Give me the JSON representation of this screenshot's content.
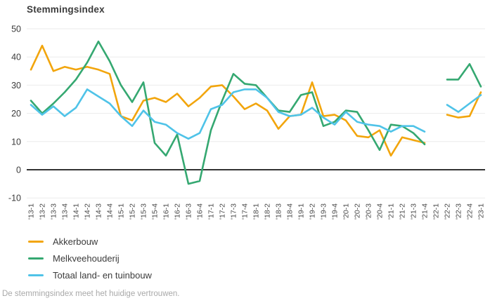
{
  "title": "Stemmingsindex",
  "footer": "De stemmingsindex meet het huidige vertrouwen.",
  "colors": {
    "grid": "#ebebeb",
    "zero_line": "#333333",
    "axis_text": "#3b3b3b",
    "tick_text": "#4a4a4a"
  },
  "chart_data": {
    "type": "line",
    "title": "Stemmingsindex",
    "xlabel": "",
    "ylabel": "",
    "ylim": [
      -10,
      50
    ],
    "yticks": [
      50,
      40,
      30,
      20,
      10,
      0,
      -10
    ],
    "grid": true,
    "legend_position": "bottom-left",
    "note": "values are null at '22-1 (gap in all series)",
    "categories": [
      "'13-1",
      "'13-2",
      "'13-3",
      "'13-4",
      "'14-1",
      "'14-2",
      "'14-3",
      "'14-4",
      "'15-1",
      "'15-2",
      "'15-3",
      "'15-4",
      "'16-1",
      "'16-2",
      "'16-3",
      "'16-4",
      "'17-1",
      "'17-2",
      "'17-3",
      "'17-4",
      "'18-1",
      "'18-2",
      "'18-3",
      "'18-4",
      "'19-1",
      "'19-2",
      "'19-3",
      "'19-4",
      "'20-1",
      "'20-2",
      "'20-3",
      "'20-4",
      "'21-1",
      "'21-2",
      "'21-3",
      "'21-4",
      "'22-1",
      "'22-2",
      "'22-3",
      "'22-4",
      "'23-1"
    ],
    "series": [
      {
        "name": "Akkerbouw",
        "color": "#F2A50C",
        "values": [
          35.5,
          44,
          35,
          36.5,
          35.5,
          36.5,
          35.5,
          34,
          19,
          17.5,
          24.5,
          25.5,
          24,
          27,
          22.5,
          25.5,
          29.5,
          30,
          26,
          21.5,
          23.5,
          21,
          14.5,
          19,
          19.5,
          31,
          19,
          19.5,
          17.5,
          12,
          11.5,
          14,
          5,
          11.5,
          10.5,
          9.5,
          null,
          19.5,
          18.5,
          19,
          27.5
        ]
      },
      {
        "name": "Melkveehouderij",
        "color": "#35A871",
        "values": [
          24.5,
          20,
          23.5,
          27.5,
          32,
          38,
          45.5,
          38.5,
          30,
          24,
          31,
          9.5,
          5,
          12.5,
          -5,
          -4,
          14,
          24.5,
          34,
          30.5,
          30,
          25.5,
          21,
          20.5,
          26.5,
          27.5,
          15.5,
          17,
          21,
          20.5,
          14,
          7,
          16,
          15.5,
          13,
          9,
          null,
          32,
          32,
          37.5,
          29.5
        ]
      },
      {
        "name": "Totaal land- en tuinbouw",
        "color": "#4FC3E8",
        "values": [
          23,
          19.5,
          22.5,
          19,
          22,
          28.5,
          26,
          23.5,
          19,
          15.5,
          21,
          17,
          16,
          13,
          11,
          13,
          21.5,
          23,
          27.5,
          28.5,
          28.5,
          25.5,
          20.5,
          19,
          19.5,
          22,
          18.5,
          16,
          20.5,
          17,
          16,
          15.5,
          13.5,
          15.5,
          15.5,
          13.5,
          null,
          23,
          20.5,
          23.5,
          26.5
        ]
      }
    ]
  }
}
